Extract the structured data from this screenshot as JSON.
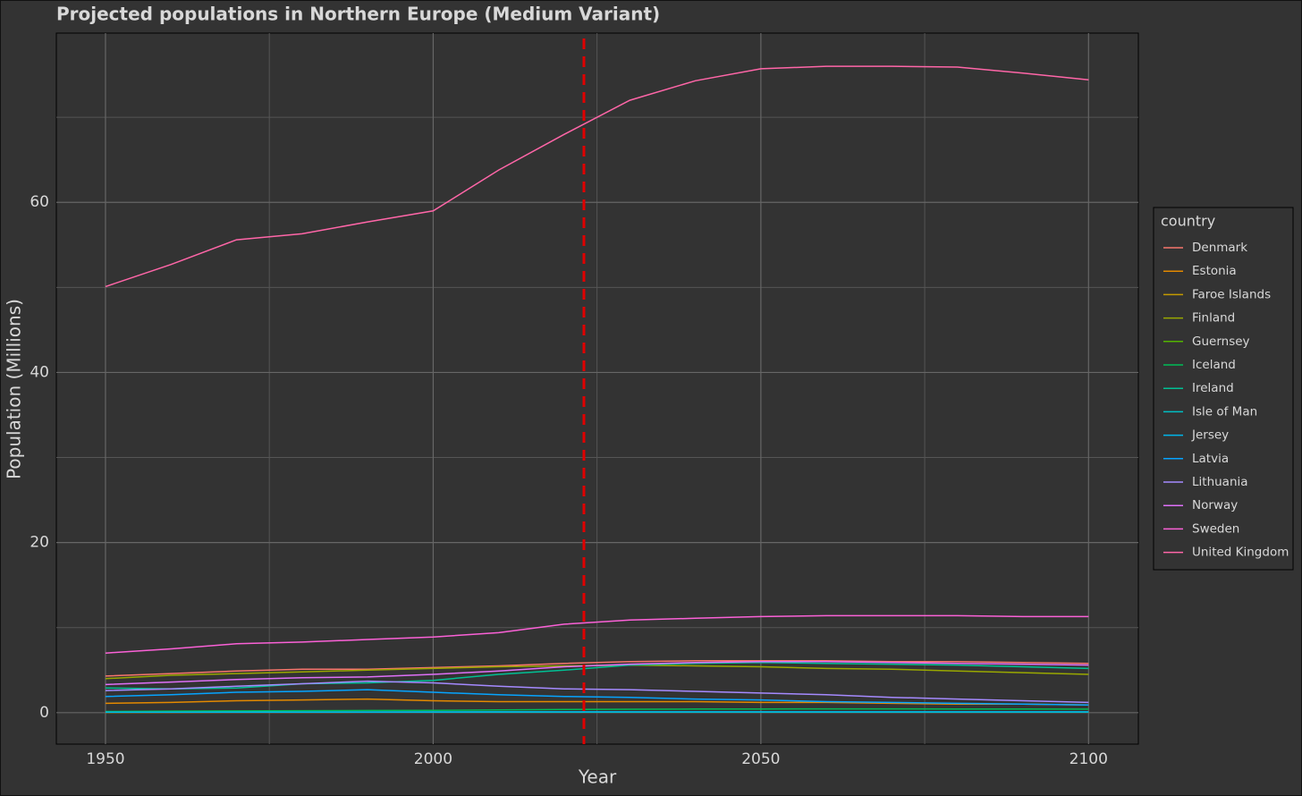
{
  "chart_data": {
    "type": "line",
    "title": "Projected populations in Northern Europe (Medium Variant)",
    "x_label": "Year",
    "y_label": "Population (Millions)",
    "legend_title": "country",
    "x": [
      1950,
      1960,
      1970,
      1980,
      1990,
      2000,
      2010,
      2020,
      2030,
      2040,
      2050,
      2060,
      2070,
      2080,
      2090,
      2100
    ],
    "xlim": [
      1942.5,
      2107.6
    ],
    "xticks": [
      1950,
      2000,
      2050,
      2100
    ],
    "x_minor_ticks": [
      1975,
      2025,
      2075
    ],
    "ylim": [
      -3.7,
      79.9
    ],
    "yticks": [
      0,
      20,
      40,
      60
    ],
    "y_minor_ticks": [
      10,
      30,
      50,
      70
    ],
    "grid": true,
    "legend": "right",
    "vline": 2023,
    "vline_color": "#e00000",
    "series": [
      {
        "name": "Denmark",
        "color": "#F8766D",
        "values": [
          4.3,
          4.6,
          4.9,
          5.1,
          5.1,
          5.3,
          5.5,
          5.8,
          6.0,
          6.1,
          6.1,
          6.1,
          6.0,
          6.0,
          5.9,
          5.8
        ]
      },
      {
        "name": "Estonia",
        "color": "#E38900",
        "values": [
          1.1,
          1.2,
          1.4,
          1.5,
          1.6,
          1.4,
          1.3,
          1.3,
          1.3,
          1.3,
          1.2,
          1.2,
          1.1,
          1.0,
          1.0,
          0.9
        ]
      },
      {
        "name": "Faroe Islands",
        "color": "#C49A00",
        "values": [
          0.03,
          0.03,
          0.04,
          0.04,
          0.05,
          0.05,
          0.05,
          0.05,
          0.05,
          0.05,
          0.05,
          0.05,
          0.05,
          0.05,
          0.05,
          0.05
        ]
      },
      {
        "name": "Finland",
        "color": "#99A800",
        "values": [
          4.0,
          4.4,
          4.6,
          4.8,
          5.0,
          5.2,
          5.4,
          5.5,
          5.6,
          5.5,
          5.4,
          5.2,
          5.1,
          4.9,
          4.7,
          4.5
        ]
      },
      {
        "name": "Guernsey",
        "color": "#53B400",
        "values": [
          0.04,
          0.05,
          0.05,
          0.05,
          0.06,
          0.06,
          0.06,
          0.06,
          0.06,
          0.06,
          0.06,
          0.06,
          0.06,
          0.06,
          0.06,
          0.06
        ]
      },
      {
        "name": "Iceland",
        "color": "#00BC56",
        "values": [
          0.14,
          0.18,
          0.2,
          0.23,
          0.25,
          0.28,
          0.32,
          0.37,
          0.4,
          0.42,
          0.43,
          0.44,
          0.44,
          0.43,
          0.42,
          0.41
        ]
      },
      {
        "name": "Ireland",
        "color": "#00C094",
        "values": [
          2.9,
          2.8,
          2.9,
          3.4,
          3.5,
          3.8,
          4.5,
          5.0,
          5.6,
          5.8,
          5.9,
          5.8,
          5.7,
          5.6,
          5.4,
          5.2
        ]
      },
      {
        "name": "Isle of Man",
        "color": "#00BFC4",
        "values": [
          0.05,
          0.05,
          0.06,
          0.06,
          0.07,
          0.08,
          0.08,
          0.08,
          0.08,
          0.08,
          0.08,
          0.08,
          0.08,
          0.08,
          0.08,
          0.08
        ]
      },
      {
        "name": "Jersey",
        "color": "#00B6EB",
        "values": [
          0.06,
          0.06,
          0.07,
          0.08,
          0.08,
          0.09,
          0.1,
          0.1,
          0.1,
          0.1,
          0.1,
          0.1,
          0.1,
          0.1,
          0.1,
          0.1
        ]
      },
      {
        "name": "Latvia",
        "color": "#06A4FF",
        "values": [
          1.9,
          2.1,
          2.4,
          2.5,
          2.7,
          2.4,
          2.1,
          1.9,
          1.8,
          1.6,
          1.5,
          1.3,
          1.2,
          1.1,
          1.0,
          0.9
        ]
      },
      {
        "name": "Lithuania",
        "color": "#A58AFF",
        "values": [
          2.6,
          2.8,
          3.1,
          3.4,
          3.7,
          3.5,
          3.1,
          2.8,
          2.7,
          2.5,
          2.3,
          2.1,
          1.8,
          1.6,
          1.4,
          1.2
        ]
      },
      {
        "name": "Norway",
        "color": "#DF70F8",
        "values": [
          3.3,
          3.6,
          3.9,
          4.1,
          4.2,
          4.5,
          4.9,
          5.4,
          5.7,
          5.9,
          6.0,
          6.0,
          5.9,
          5.8,
          5.7,
          5.6
        ]
      },
      {
        "name": "Sweden",
        "color": "#FB61D7",
        "values": [
          7.0,
          7.5,
          8.1,
          8.3,
          8.6,
          8.9,
          9.4,
          10.4,
          10.9,
          11.1,
          11.3,
          11.4,
          11.4,
          11.4,
          11.3,
          11.3
        ]
      },
      {
        "name": "United Kingdom",
        "color": "#FF66A8",
        "values": [
          50.1,
          52.7,
          55.6,
          56.3,
          57.7,
          59.0,
          63.8,
          68.0,
          72.0,
          74.3,
          75.7,
          76.0,
          76.0,
          75.9,
          75.2,
          74.4
        ]
      }
    ]
  }
}
